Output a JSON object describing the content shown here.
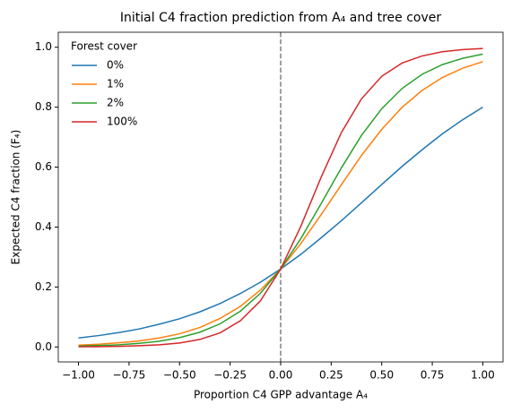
{
  "chart_data": {
    "type": "line",
    "title": "Initial C4 fraction prediction from A₄ and tree cover",
    "x_label": "Proportion C4 GPP advantage A₄",
    "y_label": "Expected C4 fraction (F₄)",
    "legend_title": "Forest cover",
    "legend": "upper left",
    "grid": false,
    "vline": 0,
    "x": [
      -1,
      -0.9,
      -0.8,
      -0.7,
      -0.6,
      -0.5,
      -0.4,
      -0.3,
      -0.2,
      -0.1,
      0,
      0.1,
      0.2,
      0.3,
      0.4,
      0.5,
      0.6,
      0.7,
      0.8,
      0.9,
      1
    ],
    "series": [
      {
        "name": "0%",
        "color": "#1f77b4",
        "values": [
          0.03,
          0.038,
          0.048,
          0.06,
          0.076,
          0.094,
          0.117,
          0.145,
          0.178,
          0.216,
          0.26,
          0.309,
          0.364,
          0.421,
          0.481,
          0.542,
          0.602,
          0.658,
          0.711,
          0.758,
          0.8
        ]
      },
      {
        "name": "1%",
        "color": "#ff7f0e",
        "values": [
          0.006,
          0.009,
          0.014,
          0.02,
          0.03,
          0.044,
          0.065,
          0.095,
          0.135,
          0.19,
          0.26,
          0.345,
          0.441,
          0.541,
          0.639,
          0.726,
          0.799,
          0.856,
          0.899,
          0.93,
          0.952
        ]
      },
      {
        "name": "2%",
        "color": "#2ca02c",
        "values": [
          0.003,
          0.005,
          0.007,
          0.012,
          0.019,
          0.031,
          0.049,
          0.077,
          0.119,
          0.179,
          0.26,
          0.362,
          0.478,
          0.597,
          0.706,
          0.795,
          0.862,
          0.91,
          0.942,
          0.963,
          0.977
        ]
      },
      {
        "name": "100%",
        "color": "#d62728",
        "values": [
          0.001,
          0.001,
          0.002,
          0.004,
          0.007,
          0.013,
          0.025,
          0.047,
          0.087,
          0.154,
          0.26,
          0.403,
          0.566,
          0.715,
          0.828,
          0.903,
          0.947,
          0.971,
          0.985,
          0.992,
          0.996
        ]
      }
    ],
    "xlim": [
      -1.1,
      1.1
    ],
    "ylim": [
      -0.05,
      1.05
    ],
    "xticks": [
      {
        "value": -1,
        "label": "−1.00"
      },
      {
        "value": -0.75,
        "label": "−0.75"
      },
      {
        "value": -0.5,
        "label": "−0.50"
      },
      {
        "value": -0.25,
        "label": "−0.25"
      },
      {
        "value": 0,
        "label": "0.00"
      },
      {
        "value": 0.25,
        "label": "0.25"
      },
      {
        "value": 0.5,
        "label": "0.50"
      },
      {
        "value": 0.75,
        "label": "0.75"
      },
      {
        "value": 1,
        "label": "1.00"
      }
    ],
    "yticks": [
      {
        "value": 0,
        "label": "0.0"
      },
      {
        "value": 0.2,
        "label": "0.2"
      },
      {
        "value": 0.4,
        "label": "0.4"
      },
      {
        "value": 0.6,
        "label": "0.6"
      },
      {
        "value": 0.8,
        "label": "0.8"
      },
      {
        "value": 1,
        "label": "1.0"
      }
    ]
  }
}
